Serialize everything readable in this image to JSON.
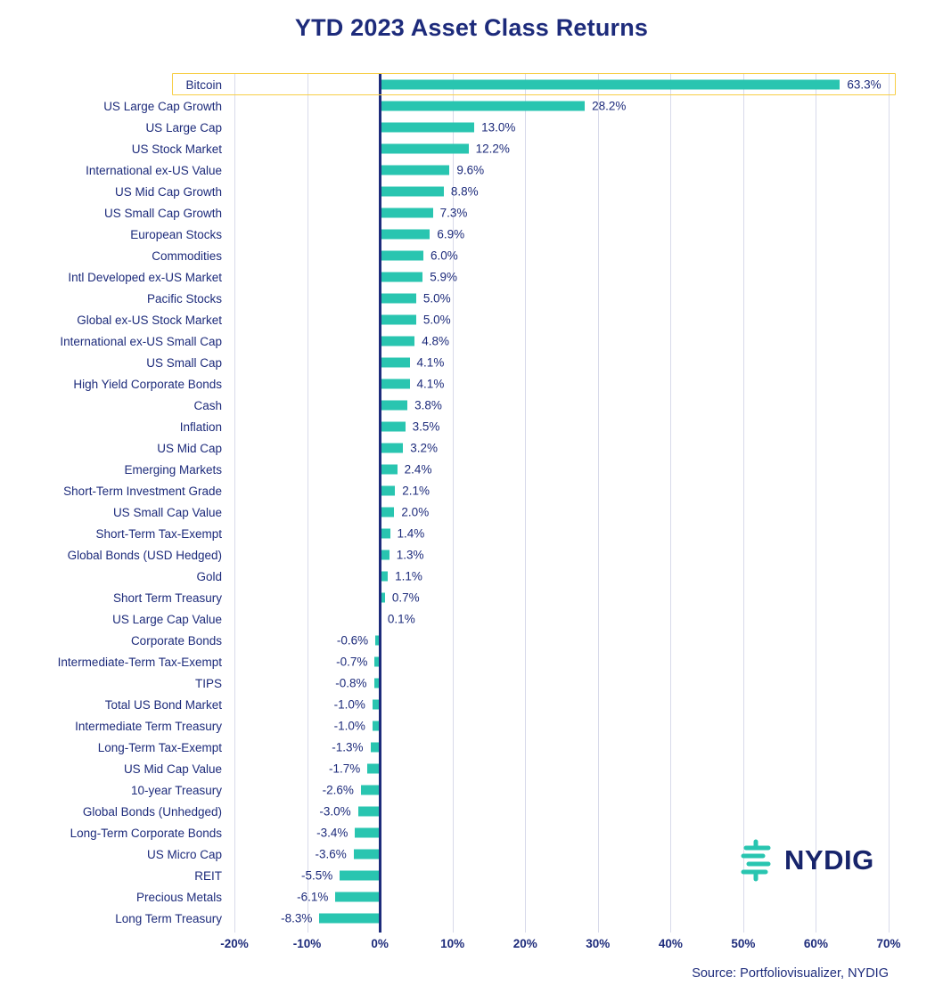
{
  "title": "YTD 2023 Asset Class Returns",
  "source": "Source: Portfoliovisualizer, NYDIG",
  "logo": {
    "text": "NYDIG"
  },
  "colors": {
    "bar": "#29C5B0",
    "navy": "#1D2B7B",
    "grid": "#D8DAEA",
    "highlight": "#F7CE46"
  },
  "chart_data": {
    "type": "bar",
    "orientation": "horizontal",
    "title": "YTD 2023 Asset Class Returns",
    "xlabel": "",
    "ylabel": "",
    "grid": true,
    "legend": false,
    "xlim": [
      -20,
      70
    ],
    "xtick_values": [
      -20,
      -10,
      0,
      10,
      20,
      30,
      40,
      50,
      60,
      70
    ],
    "xtick_labels": [
      "-20%",
      "-10%",
      "0%",
      "10%",
      "20%",
      "30%",
      "40%",
      "50%",
      "60%",
      "70%"
    ],
    "highlighted_category": "Bitcoin",
    "categories": [
      "Bitcoin",
      "US Large Cap Growth",
      "US Large Cap",
      "US Stock Market",
      "International ex-US Value",
      "US Mid Cap Growth",
      "US Small Cap Growth",
      "European Stocks",
      "Commodities",
      "Intl Developed ex-US Market",
      "Pacific Stocks",
      "Global ex-US Stock Market",
      "International ex-US Small Cap",
      "US Small Cap",
      "High Yield Corporate Bonds",
      "Cash",
      "Inflation",
      "US Mid Cap",
      "Emerging Markets",
      "Short-Term Investment Grade",
      "US Small Cap Value",
      "Short-Term Tax-Exempt",
      "Global Bonds (USD Hedged)",
      "Gold",
      "Short Term Treasury",
      "US Large Cap Value",
      "Corporate Bonds",
      "Intermediate-Term Tax-Exempt",
      "TIPS",
      "Total US Bond Market",
      "Intermediate Term Treasury",
      "Long-Term Tax-Exempt",
      "US Mid Cap Value",
      "10-year Treasury",
      "Global Bonds (Unhedged)",
      "Long-Term Corporate Bonds",
      "US Micro Cap",
      "REIT",
      "Precious Metals",
      "Long Term Treasury"
    ],
    "values": [
      63.3,
      28.2,
      13.0,
      12.2,
      9.6,
      8.8,
      7.3,
      6.9,
      6.0,
      5.9,
      5.0,
      5.0,
      4.8,
      4.1,
      4.1,
      3.8,
      3.5,
      3.2,
      2.4,
      2.1,
      2.0,
      1.4,
      1.3,
      1.1,
      0.7,
      0.1,
      -0.6,
      -0.7,
      -0.8,
      -1.0,
      -1.0,
      -1.3,
      -1.7,
      -2.6,
      -3.0,
      -3.4,
      -3.6,
      -5.5,
      -6.1,
      -8.3
    ],
    "value_labels": [
      "63.3%",
      "28.2%",
      "13.0%",
      "12.2%",
      "9.6%",
      "8.8%",
      "7.3%",
      "6.9%",
      "6.0%",
      "5.9%",
      "5.0%",
      "5.0%",
      "4.8%",
      "4.1%",
      "4.1%",
      "3.8%",
      "3.5%",
      "3.2%",
      "2.4%",
      "2.1%",
      "2.0%",
      "1.4%",
      "1.3%",
      "1.1%",
      "0.7%",
      "0.1%",
      "-0.6%",
      "-0.7%",
      "-0.8%",
      "-1.0%",
      "-1.0%",
      "-1.3%",
      "-1.7%",
      "-2.6%",
      "-3.0%",
      "-3.4%",
      "-3.6%",
      "-5.5%",
      "-6.1%",
      "-8.3%"
    ]
  }
}
